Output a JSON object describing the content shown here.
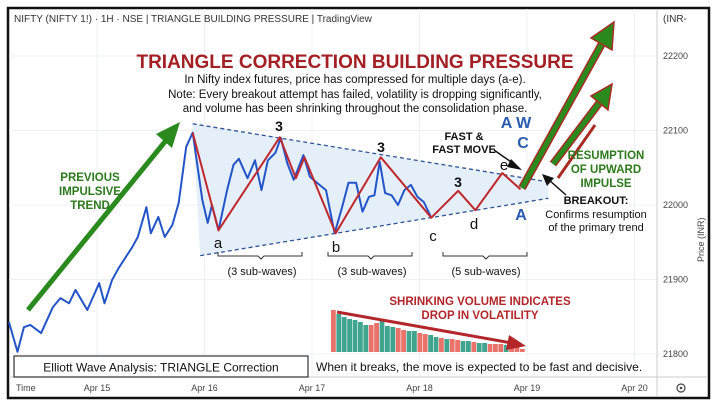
{
  "header": {
    "title": "NIFTY (NIFTY 1!) · 1H · NSE | TRIANGLE BUILDING PRESSURE | TradingView",
    "currency": "(INR-"
  },
  "annotations": {
    "title": "TRIANGLE CORRECTION BUILDING PRESSURE",
    "sub1": "In Nifty index futures, price has compressed for multiple days (a-e).",
    "sub2": "Note: Every breakout attempt has failed, volatility is dropping significantly,",
    "sub3": "and volume has been shrinking throughout the consolidation phase.",
    "prev1": "PREVIOUS",
    "prev2": "IMPULSIVE",
    "prev3": "TREND",
    "wave3a": "3",
    "wave3b": "3",
    "wave3c": "3",
    "a": "a",
    "b": "b",
    "c": "c",
    "d": "d",
    "e": "e",
    "sub_waves_1": "(3 sub-waves)",
    "sub_waves_2": "(3 sub-waves)",
    "sub_waves_3": "(5 sub-waves)",
    "aw": "A W",
    "C": "C",
    "A": "A",
    "fast1": "FAST &",
    "fast2": "FAST MOVE",
    "res1": "RESUMPTION",
    "res2": "OF UPWARD",
    "res3": "IMPULSE",
    "breakout": "BREAKOUT:",
    "breakout2": "Confirms resumption",
    "breakout3": "of the primary trend",
    "vol1": "SHRINKING VOLUME INDICATES",
    "vol2": "DROP IN VOLATILITY",
    "box": "Elliott Wave Analysis: TRIANGLE Correction",
    "footer": "When it breaks, the move is expected to be fast and decisive."
  },
  "colors": {
    "price": "#2455c8",
    "wave": "#c0282d",
    "green": "#2a8a1e",
    "vol_up": "#3fa58e",
    "vol_down": "#e9726b",
    "triangle_fill": "#deebf7"
  },
  "chart_data": {
    "type": "line",
    "title": "TRIANGLE CORRECTION BUILDING PRESSURE",
    "xlabel": "Time",
    "ylabel": "Price (INR)",
    "x_unit": "days since Apr 15",
    "x_ticks": [
      {
        "d": 0,
        "label": "Apr 15"
      },
      {
        "d": 1,
        "label": "Apr 16"
      },
      {
        "d": 2,
        "label": "Apr 17"
      },
      {
        "d": 3,
        "label": "Apr 18"
      },
      {
        "d": 4,
        "label": "Apr 19"
      },
      {
        "d": 5,
        "label": "Apr 20"
      }
    ],
    "y_ticks": [
      22200,
      22100,
      22000,
      21900,
      21800
    ],
    "ylim": [
      21770,
      22270
    ],
    "grid": true,
    "series": [
      {
        "name": "Price",
        "points": [
          [
            -0.82,
            21843
          ],
          [
            -0.74,
            21803
          ],
          [
            -0.68,
            21836
          ],
          [
            -0.62,
            21839
          ],
          [
            -0.52,
            21828
          ],
          [
            -0.41,
            21863
          ],
          [
            -0.34,
            21875
          ],
          [
            -0.26,
            21868
          ],
          [
            -0.2,
            21886
          ],
          [
            -0.09,
            21859
          ],
          [
            0.02,
            21895
          ],
          [
            0.07,
            21868
          ],
          [
            0.14,
            21899
          ],
          [
            0.2,
            21915
          ],
          [
            0.33,
            21944
          ],
          [
            0.38,
            21957
          ],
          [
            0.46,
            21997
          ],
          [
            0.5,
            21962
          ],
          [
            0.57,
            21984
          ],
          [
            0.63,
            21957
          ],
          [
            0.7,
            21973
          ],
          [
            0.76,
            22003
          ],
          [
            0.83,
            22078
          ],
          [
            0.89,
            22097
          ],
          [
            0.98,
            22007
          ],
          [
            1.03,
            21976
          ],
          [
            1.07,
            22000
          ],
          [
            1.13,
            21966
          ],
          [
            1.21,
            22020
          ],
          [
            1.27,
            22054
          ],
          [
            1.32,
            22062
          ],
          [
            1.4,
            22036
          ],
          [
            1.47,
            22060
          ],
          [
            1.53,
            22020
          ],
          [
            1.59,
            22060
          ],
          [
            1.66,
            22070
          ],
          [
            1.71,
            22090
          ],
          [
            1.77,
            22056
          ],
          [
            1.83,
            22034
          ],
          [
            1.92,
            22067
          ],
          [
            1.98,
            22038
          ],
          [
            2.07,
            22027
          ],
          [
            2.13,
            22020
          ],
          [
            2.21,
            21962
          ],
          [
            2.28,
            21997
          ],
          [
            2.34,
            22030
          ],
          [
            2.41,
            22030
          ],
          [
            2.47,
            21991
          ],
          [
            2.53,
            22011
          ],
          [
            2.58,
            22013
          ],
          [
            2.63,
            22058
          ],
          [
            2.68,
            22016
          ],
          [
            2.74,
            22013
          ],
          [
            2.8,
            22000
          ],
          [
            2.86,
            22020
          ],
          [
            2.92,
            22027
          ],
          [
            2.98,
            22011
          ],
          [
            3.04,
            22004
          ],
          [
            3.11,
            21983
          ]
        ]
      },
      {
        "name": "Elliott Wave",
        "points": [
          [
            0.89,
            22097
          ],
          [
            1.13,
            21966
          ],
          [
            1.7,
            22091
          ],
          [
            1.85,
            22036
          ],
          [
            1.93,
            22064
          ],
          [
            2.22,
            21962
          ],
          [
            2.64,
            22064
          ],
          [
            3.11,
            21983
          ],
          [
            3.36,
            22019
          ],
          [
            3.52,
            21993
          ],
          [
            3.77,
            22043
          ],
          [
            3.94,
            22021
          ]
        ]
      }
    ],
    "triangle": {
      "upper": [
        [
          0.89,
          22109
        ],
        [
          4.2,
          22031
        ]
      ],
      "lower": [
        [
          0.96,
          21932
        ],
        [
          4.2,
          22009
        ]
      ]
    },
    "volume": {
      "values": [
        42,
        38,
        35,
        33,
        32,
        30,
        27,
        27,
        29,
        31,
        26,
        25,
        24,
        22,
        21,
        21,
        19,
        18,
        17,
        15,
        14,
        13,
        13,
        12,
        11,
        11,
        10,
        9,
        9,
        8,
        8,
        8,
        7,
        6,
        5,
        3
      ],
      "directions": [
        "down",
        "up",
        "up",
        "up",
        "up",
        "up",
        "up",
        "down",
        "down",
        "up",
        "up",
        "up",
        "down",
        "down",
        "up",
        "up",
        "down",
        "down",
        "up",
        "up",
        "down",
        "up",
        "down",
        "down",
        "up",
        "up",
        "down",
        "up",
        "up",
        "down",
        "down",
        "down",
        "up",
        "down",
        "down",
        "down"
      ]
    }
  }
}
